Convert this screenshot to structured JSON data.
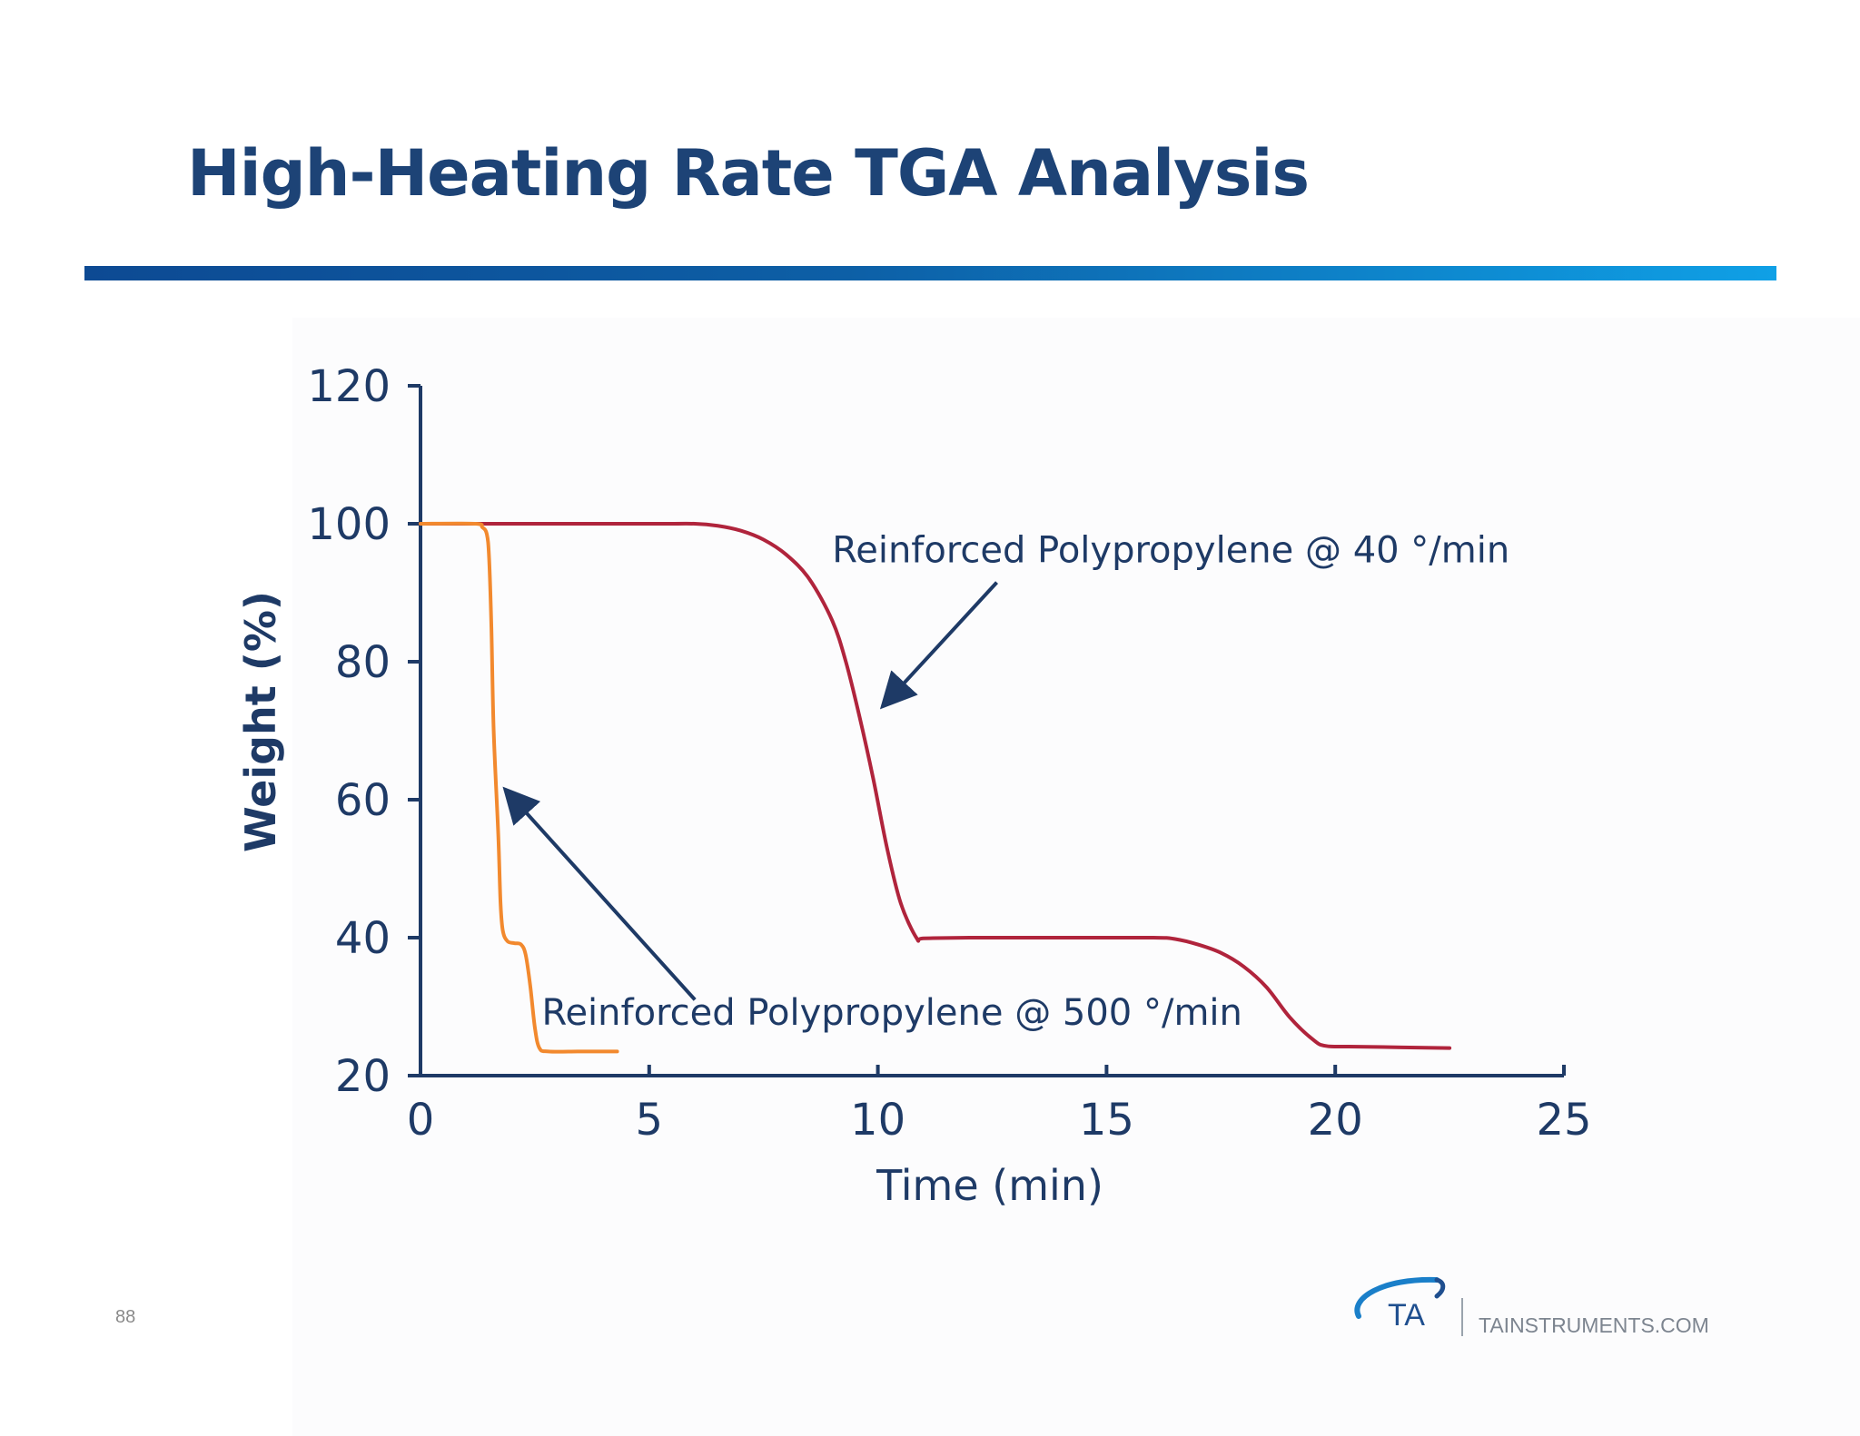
{
  "slide": {
    "title": "High-Heating Rate TGA Analysis",
    "page_number": "88",
    "brand_url": "TAINSTRUMENTS.COM",
    "logo_text": "TA",
    "title_color": "#1d4376",
    "rule_colors": [
      "#0d4a93",
      "#0fa0e6"
    ]
  },
  "chart_data": {
    "type": "line",
    "title": "",
    "xlabel": "Time (min)",
    "ylabel": "Weight (%)",
    "xlim": [
      0,
      25
    ],
    "ylim": [
      20,
      120
    ],
    "xticks": [
      0,
      5,
      10,
      15,
      20,
      25
    ],
    "yticks": [
      20,
      40,
      60,
      80,
      100,
      120
    ],
    "grid": false,
    "axis_color": "#1e3a66",
    "series": [
      {
        "name": "Reinforced Polypropylene @ 40 °/min",
        "color": "#b0243c",
        "x": [
          0,
          5,
          6,
          6.5,
          7,
          7.5,
          8,
          8.5,
          9,
          9.3,
          9.6,
          9.9,
          10.2,
          10.5,
          10.85,
          11,
          12,
          14,
          16,
          16.5,
          17,
          17.5,
          18,
          18.5,
          19,
          19.5,
          19.8,
          20.5,
          22.5
        ],
        "values": [
          100,
          100,
          100,
          99.7,
          99,
          97.7,
          95.5,
          92,
          86,
          80,
          72,
          63,
          53,
          45,
          39.9,
          39.9,
          40,
          40,
          40,
          39.8,
          39,
          37.8,
          35.8,
          32.8,
          28.5,
          25.3,
          24.3,
          24.2,
          24
        ]
      },
      {
        "name": "Reinforced Polypropylene @ 500 °/min",
        "color": "#f2892e",
        "x": [
          0,
          1.2,
          1.35,
          1.45,
          1.5,
          1.55,
          1.6,
          1.7,
          1.75,
          1.8,
          1.9,
          2.05,
          2.2,
          2.3,
          2.4,
          2.5,
          2.6,
          2.8,
          3.5,
          4.3
        ],
        "values": [
          100,
          100,
          99.5,
          98.5,
          95,
          85,
          70,
          55,
          45,
          41,
          39.5,
          39.2,
          39,
          37.5,
          33,
          27,
          24,
          23.5,
          23.5,
          23.5
        ]
      }
    ],
    "annotations": [
      {
        "text": "Reinforced Polypropylene @ 40 °/min",
        "label_x": 9,
        "label_y": 96.5,
        "tail": [
          12.6,
          91.5
        ],
        "head": [
          10.1,
          73.5
        ]
      },
      {
        "text": "Reinforced Polypropylene @ 500 °/min",
        "label_x": 2.65,
        "label_y": 29.5,
        "tail": [
          6,
          31
        ],
        "head": [
          1.85,
          61.5
        ]
      }
    ]
  }
}
